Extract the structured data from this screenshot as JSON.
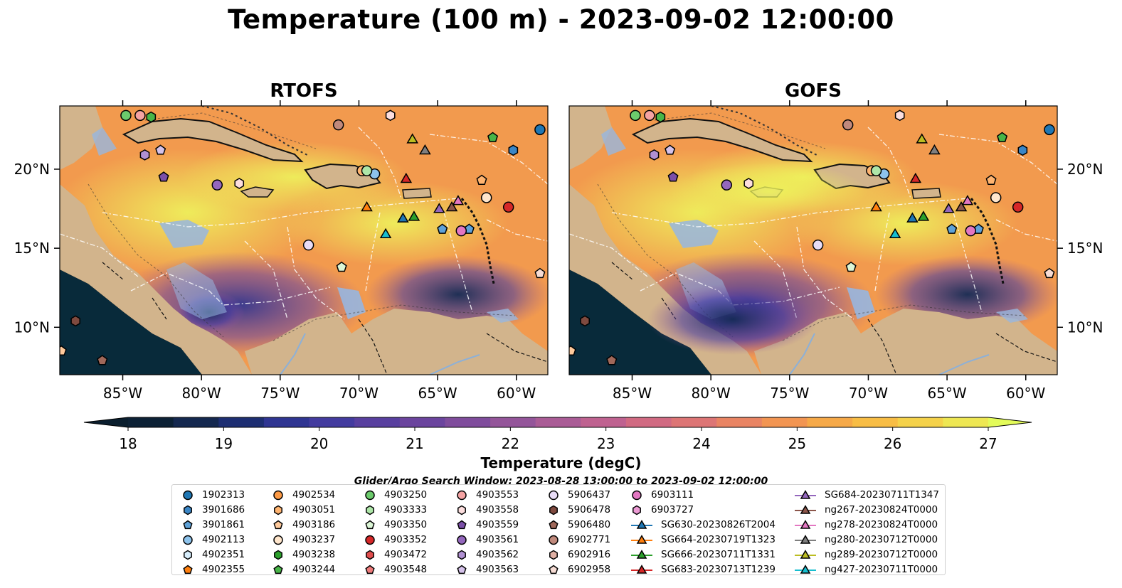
{
  "title": "Temperature (100 m) - 2023-09-02 12:00:00",
  "panels": [
    {
      "title": "RTOFS"
    },
    {
      "title": "GOFS"
    }
  ],
  "map": {
    "lon_range": [
      -89,
      -58
    ],
    "lat_range": [
      7,
      24
    ],
    "lon_ticks": [
      "85°W",
      "80°W",
      "75°W",
      "70°W",
      "65°W",
      "60°W"
    ],
    "lat_ticks": [
      "20°N",
      "15°N",
      "10°N"
    ],
    "land_color": "#d2b48c",
    "shelf_color": "#97b6e0",
    "deep_pacific_color": "#082a3a"
  },
  "colorbar": {
    "label": "Temperature (degC)",
    "min": 18,
    "max": 27,
    "ticks": [
      "18",
      "19",
      "20",
      "21",
      "22",
      "23",
      "24",
      "25",
      "26",
      "27"
    ],
    "colors": [
      "#0c2135",
      "#14284f",
      "#1d2e72",
      "#2f3592",
      "#433b9f",
      "#583f9f",
      "#6b449e",
      "#7f4c9c",
      "#94559a",
      "#aa5c96",
      "#bf6290",
      "#d16a82",
      "#dd7575",
      "#e98463",
      "#f29552",
      "#f6a948",
      "#f8bd45",
      "#f5d24a",
      "#eee753"
    ],
    "extend_low": "#0a1e2e",
    "extend_high": "#e3fb5a"
  },
  "search_window": "Glider/Argo Search Window: 2023-08-28 13:00:00 to 2023-09-02 12:00:00",
  "legend": {
    "columns": [
      [
        {
          "label": "1902313",
          "marker": "circle",
          "color": "#1f77b4"
        },
        {
          "label": "3901686",
          "marker": "hexagon",
          "color": "#3a86c6"
        },
        {
          "label": "3901861",
          "marker": "pentagon",
          "color": "#5fa2d8"
        },
        {
          "label": "4902113",
          "marker": "circle",
          "color": "#8dc3ec"
        },
        {
          "label": "4902351",
          "marker": "hexagon",
          "color": "#d6ecfa"
        },
        {
          "label": "4902355",
          "marker": "pentagon",
          "color": "#ff7f0e"
        }
      ],
      [
        {
          "label": "4902534",
          "marker": "circle",
          "color": "#fd9a45"
        },
        {
          "label": "4903051",
          "marker": "hexagon",
          "color": "#ffb470"
        },
        {
          "label": "4903186",
          "marker": "pentagon",
          "color": "#ffca9c"
        },
        {
          "label": "4903237",
          "marker": "circle",
          "color": "#ffe6cc"
        },
        {
          "label": "4903238",
          "marker": "hexagon",
          "color": "#2ca02c"
        },
        {
          "label": "4903244",
          "marker": "pentagon",
          "color": "#48b548"
        }
      ],
      [
        {
          "label": "4903250",
          "marker": "circle",
          "color": "#6ccb6c"
        },
        {
          "label": "4903333",
          "marker": "hexagon",
          "color": "#aee6a8"
        },
        {
          "label": "4903350",
          "marker": "pentagon",
          "color": "#dcf6d6"
        },
        {
          "label": "4903352",
          "marker": "circle",
          "color": "#d62728"
        },
        {
          "label": "4903472",
          "marker": "hexagon",
          "color": "#e04d4d"
        },
        {
          "label": "4903548",
          "marker": "pentagon",
          "color": "#ee7b7b"
        }
      ],
      [
        {
          "label": "4903553",
          "marker": "circle",
          "color": "#f5a3a3"
        },
        {
          "label": "4903558",
          "marker": "hexagon",
          "color": "#fcdede"
        },
        {
          "label": "4903559",
          "marker": "pentagon",
          "color": "#7b4fa8"
        },
        {
          "label": "4903561",
          "marker": "circle",
          "color": "#9467bd"
        },
        {
          "label": "4903562",
          "marker": "hexagon",
          "color": "#b090d2"
        },
        {
          "label": "4903563",
          "marker": "pentagon",
          "color": "#d5c2ea"
        }
      ],
      [
        {
          "label": "5906437",
          "marker": "circle",
          "color": "#e8dcf6"
        },
        {
          "label": "5906478",
          "marker": "hexagon",
          "color": "#7f4a3f"
        },
        {
          "label": "5906480",
          "marker": "pentagon",
          "color": "#a0685a"
        },
        {
          "label": "6902771",
          "marker": "circle",
          "color": "#c0897c"
        },
        {
          "label": "6902916",
          "marker": "hexagon",
          "color": "#e0b0a4"
        },
        {
          "label": "6902958",
          "marker": "pentagon",
          "color": "#f6dcd4"
        }
      ],
      [
        {
          "label": "6903111",
          "marker": "circle",
          "color": "#e377c2"
        },
        {
          "label": "6903727",
          "marker": "hexagon",
          "color": "#ec9ad4"
        },
        {
          "label": "SG630-20230826T2004",
          "marker": "triangle",
          "color": "#1f77b4"
        },
        {
          "label": "SG664-20230719T1323",
          "marker": "triangle",
          "color": "#ff7f0e"
        },
        {
          "label": "SG666-20230711T1331",
          "marker": "triangle",
          "color": "#2ca02c"
        },
        {
          "label": "SG683-20230713T1239",
          "marker": "triangle",
          "color": "#d62728"
        }
      ],
      [
        {
          "label": "SG684-20230711T1347",
          "marker": "triangle",
          "color": "#9467bd"
        },
        {
          "label": "ng267-20230824T0000",
          "marker": "triangle",
          "color": "#8c564b"
        },
        {
          "label": "ng278-20230824T0000",
          "marker": "triangle",
          "color": "#e377c2"
        },
        {
          "label": "ng280-20230712T0000",
          "marker": "triangle",
          "color": "#7f7f7f"
        },
        {
          "label": "ng289-20230712T0000",
          "marker": "triangle",
          "color": "#bcbd22"
        },
        {
          "label": "ng427-20230711T0000",
          "marker": "triangle",
          "color": "#17becf"
        }
      ]
    ]
  },
  "observations": [
    {
      "lon": -58.5,
      "lat": 22.5,
      "marker": "circle",
      "color": "#1f77b4"
    },
    {
      "lon": -60.2,
      "lat": 21.2,
      "marker": "hexagon",
      "color": "#3a86c6"
    },
    {
      "lon": -63.0,
      "lat": 16.2,
      "marker": "pentagon",
      "color": "#5fa2d8"
    },
    {
      "lon": -69.0,
      "lat": 19.7,
      "marker": "circle",
      "color": "#8dc3ec"
    },
    {
      "lon": -84.8,
      "lat": 23.4,
      "marker": "circle",
      "color": "#6ccb6c"
    },
    {
      "lon": -83.2,
      "lat": 23.3,
      "marker": "hexagon",
      "color": "#48b548"
    },
    {
      "lon": -83.9,
      "lat": 23.4,
      "marker": "circle",
      "color": "#f5a3a3"
    },
    {
      "lon": -61.5,
      "lat": 22.0,
      "marker": "pentagon",
      "color": "#48b548"
    },
    {
      "lon": -68.0,
      "lat": 23.4,
      "marker": "hexagon",
      "color": "#fcdede"
    },
    {
      "lon": -71.3,
      "lat": 22.8,
      "marker": "circle",
      "color": "#c0897c"
    },
    {
      "lon": -83.6,
      "lat": 20.9,
      "marker": "hexagon",
      "color": "#b090d2"
    },
    {
      "lon": -82.6,
      "lat": 21.2,
      "marker": "pentagon",
      "color": "#d5c2ea"
    },
    {
      "lon": -82.4,
      "lat": 19.5,
      "marker": "pentagon",
      "color": "#7b4fa8"
    },
    {
      "lon": -79.0,
      "lat": 19.0,
      "marker": "circle",
      "color": "#9467bd"
    },
    {
      "lon": -77.6,
      "lat": 19.1,
      "marker": "hexagon",
      "color": "#fcdede"
    },
    {
      "lon": -69.8,
      "lat": 19.9,
      "marker": "circle",
      "color": "#ffb470"
    },
    {
      "lon": -69.5,
      "lat": 19.9,
      "marker": "circle",
      "color": "#aee6a8"
    },
    {
      "lon": -62.2,
      "lat": 19.3,
      "marker": "pentagon",
      "color": "#ffb470"
    },
    {
      "lon": -61.9,
      "lat": 18.2,
      "marker": "circle",
      "color": "#ffe6cc"
    },
    {
      "lon": -60.5,
      "lat": 17.6,
      "marker": "circle",
      "color": "#d62728"
    },
    {
      "lon": -64.7,
      "lat": 16.2,
      "marker": "pentagon",
      "color": "#5fa2d8"
    },
    {
      "lon": -63.5,
      "lat": 16.1,
      "marker": "circle",
      "color": "#e377c2"
    },
    {
      "lon": -73.2,
      "lat": 15.2,
      "marker": "circle",
      "color": "#e8dcf6"
    },
    {
      "lon": -71.1,
      "lat": 13.8,
      "marker": "pentagon",
      "color": "#dcf6d6"
    },
    {
      "lon": -58.5,
      "lat": 13.4,
      "marker": "pentagon",
      "color": "#f6dcd4"
    },
    {
      "lon": -88.0,
      "lat": 10.4,
      "marker": "hexagon",
      "color": "#7f4a3f"
    },
    {
      "lon": -86.3,
      "lat": 7.9,
      "marker": "pentagon",
      "color": "#a0685a"
    },
    {
      "lon": -88.9,
      "lat": 8.5,
      "marker": "pentagon",
      "color": "#ffca9c"
    },
    {
      "lon": -66.6,
      "lat": 21.9,
      "marker": "triangle",
      "color": "#bcbd22"
    },
    {
      "lon": -65.8,
      "lat": 21.2,
      "marker": "triangle",
      "color": "#7f7f7f"
    },
    {
      "lon": -67.0,
      "lat": 19.4,
      "marker": "triangle",
      "color": "#d62728"
    },
    {
      "lon": -69.5,
      "lat": 17.6,
      "marker": "triangle",
      "color": "#ff7f0e"
    },
    {
      "lon": -67.2,
      "lat": 16.9,
      "marker": "triangle",
      "color": "#1f77b4"
    },
    {
      "lon": -66.5,
      "lat": 17.0,
      "marker": "triangle",
      "color": "#2ca02c"
    },
    {
      "lon": -64.9,
      "lat": 17.5,
      "marker": "triangle",
      "color": "#9467bd"
    },
    {
      "lon": -64.1,
      "lat": 17.6,
      "marker": "triangle",
      "color": "#8c564b"
    },
    {
      "lon": -63.7,
      "lat": 18.0,
      "marker": "triangle",
      "color": "#e377c2"
    },
    {
      "lon": -68.3,
      "lat": 15.9,
      "marker": "triangle",
      "color": "#17becf"
    }
  ]
}
